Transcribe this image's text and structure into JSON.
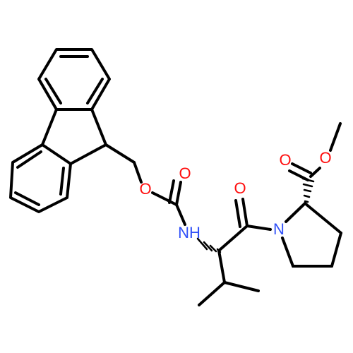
{
  "atoms": [
    {
      "label": "O"
    },
    {
      "label": "O"
    },
    {
      "label": "NH"
    },
    {
      "label": "O"
    },
    {
      "label": "N"
    },
    {
      "label": "O"
    },
    {
      "label": "O"
    }
  ]
}
